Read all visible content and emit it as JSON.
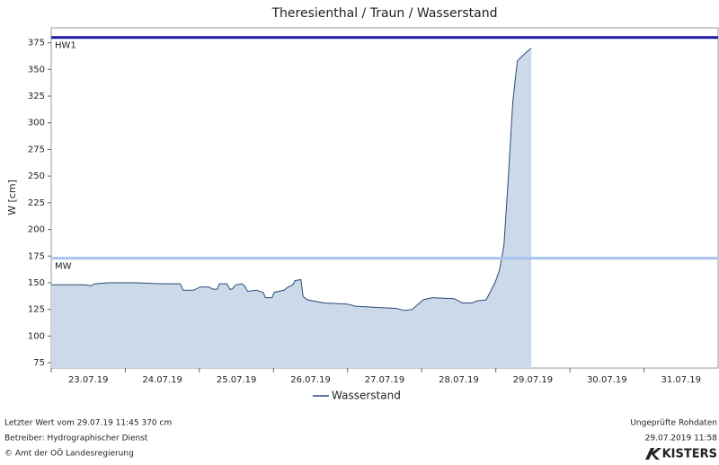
{
  "chart_data": {
    "type": "area",
    "title": "Theresienthal / Traun / Wasserstand",
    "y_label": "W [cm]",
    "x": [
      23.0,
      23.47,
      23.53,
      23.59,
      23.77,
      24.13,
      24.5,
      24.74,
      24.78,
      24.92,
      25.01,
      25.13,
      25.18,
      25.24,
      25.27,
      25.37,
      25.41,
      25.44,
      25.49,
      25.57,
      25.61,
      25.65,
      25.77,
      25.86,
      25.89,
      25.98,
      26.01,
      26.14,
      26.2,
      26.26,
      26.29,
      26.37,
      26.4,
      26.46,
      26.68,
      26.99,
      27.11,
      27.35,
      27.65,
      27.77,
      27.87,
      28.02,
      28.14,
      28.44,
      28.55,
      28.68,
      28.74,
      28.87,
      28.99,
      29.05,
      29.11,
      29.17,
      29.23,
      29.29,
      29.35,
      29.41,
      29.48
    ],
    "series": [
      {
        "name": "Wasserstand",
        "color": "#2b4a78",
        "fill": "#ccd9e8",
        "values": [
          148,
          148,
          147,
          149,
          150,
          150,
          149,
          149,
          143,
          143,
          146,
          146,
          144,
          144,
          149,
          149,
          144,
          144,
          148,
          149,
          147,
          142,
          143,
          141,
          136,
          136,
          141,
          143,
          146,
          148,
          152,
          153,
          137,
          134,
          131,
          130,
          128,
          127,
          126,
          124,
          125,
          134,
          136,
          135,
          131,
          131,
          133,
          134,
          150,
          162,
          185,
          250,
          320,
          358,
          362,
          366,
          370
        ]
      }
    ],
    "xlim": [
      23,
      32
    ],
    "xticks": [
      {
        "value": 23,
        "label": "23.07.19"
      },
      {
        "value": 24,
        "label": "24.07.19"
      },
      {
        "value": 25,
        "label": "25.07.19"
      },
      {
        "value": 26,
        "label": "26.07.19"
      },
      {
        "value": 27,
        "label": "27.07.19"
      },
      {
        "value": 28,
        "label": "28.07.19"
      },
      {
        "value": 29,
        "label": "29.07.19"
      },
      {
        "value": 30,
        "label": "30.07.19"
      },
      {
        "value": 31,
        "label": "31.07.19"
      }
    ],
    "ylim": [
      70,
      389
    ],
    "yticks": [
      75,
      100,
      125,
      150,
      175,
      200,
      225,
      250,
      275,
      300,
      325,
      350,
      375
    ],
    "reference_lines": [
      {
        "label": "HW1",
        "value": 380,
        "color": "#1a1aa8"
      },
      {
        "label": "MW",
        "value": 173,
        "color": "#a9c3ef"
      }
    ],
    "legend": "bottom",
    "footer": {
      "left": [
        "Letzter Wert vom 29.07.19 11:45 370 cm",
        "Betreiber: Hydrographischer Dienst",
        "© Amt der OÖ Landesregierung"
      ],
      "right": [
        "Ungeprüfte Rohdaten",
        "29.07.2019 11:58"
      ],
      "logo": "KISTERS"
    }
  }
}
